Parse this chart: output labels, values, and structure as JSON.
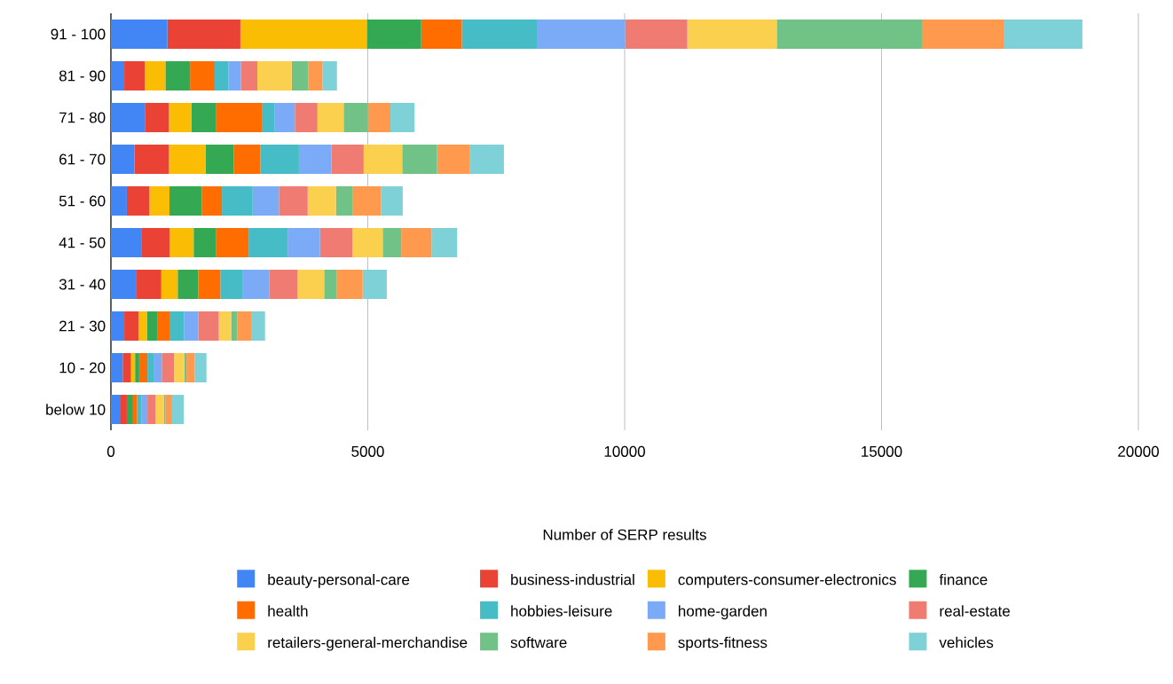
{
  "chart_data": {
    "type": "bar",
    "orientation": "horizontal",
    "stacked": true,
    "xlabel": "Number of SERP results",
    "categories": [
      "91 - 100",
      "81 - 90",
      "71 - 80",
      "61 - 70",
      "51 - 60",
      "41 - 50",
      "31 - 40",
      "21 - 30",
      "10 - 20",
      "below 10"
    ],
    "xlim": [
      0,
      20000
    ],
    "xticks": [
      0,
      5000,
      10000,
      15000,
      20000
    ],
    "grid": "x",
    "legend": "bottom",
    "series": [
      {
        "name": "beauty-personal-care",
        "color": "#4285f4",
        "values": [
          1100,
          260,
          660,
          460,
          310,
          590,
          500,
          260,
          230,
          190
        ]
      },
      {
        "name": "business-industrial",
        "color": "#ea4335",
        "values": [
          1420,
          400,
          470,
          670,
          440,
          550,
          480,
          280,
          160,
          120
        ]
      },
      {
        "name": "computers-consumer-electronics",
        "color": "#fbbc04",
        "values": [
          2460,
          400,
          440,
          710,
          390,
          470,
          320,
          160,
          80,
          0
        ]
      },
      {
        "name": "finance",
        "color": "#34a853",
        "values": [
          1060,
          480,
          470,
          550,
          630,
          440,
          400,
          200,
          80,
          120
        ]
      },
      {
        "name": "health",
        "color": "#ff6d01",
        "values": [
          790,
          480,
          910,
          520,
          390,
          630,
          430,
          240,
          160,
          80
        ]
      },
      {
        "name": "hobbies-leisure",
        "color": "#46bdc6",
        "values": [
          1460,
          270,
          240,
          750,
          600,
          760,
          440,
          280,
          120,
          80
        ]
      },
      {
        "name": "home-garden",
        "color": "#7baaf7",
        "values": [
          1720,
          240,
          390,
          630,
          510,
          630,
          510,
          280,
          160,
          120
        ]
      },
      {
        "name": "real-estate",
        "color": "#f07b72",
        "values": [
          1210,
          320,
          440,
          630,
          560,
          630,
          550,
          400,
          240,
          160
        ]
      },
      {
        "name": "retailers-general-merchandise",
        "color": "#fcd04f",
        "values": [
          1740,
          670,
          510,
          750,
          550,
          590,
          520,
          240,
          200,
          160
        ]
      },
      {
        "name": "software",
        "color": "#71c287",
        "values": [
          2840,
          320,
          470,
          680,
          320,
          360,
          240,
          120,
          40,
          30
        ]
      },
      {
        "name": "sports-fitness",
        "color": "#ff994d",
        "values": [
          1590,
          280,
          440,
          630,
          560,
          590,
          510,
          270,
          160,
          130
        ]
      },
      {
        "name": "vehicles",
        "color": "#7ed1d7",
        "values": [
          1520,
          280,
          470,
          670,
          420,
          500,
          470,
          270,
          230,
          230
        ]
      }
    ]
  }
}
